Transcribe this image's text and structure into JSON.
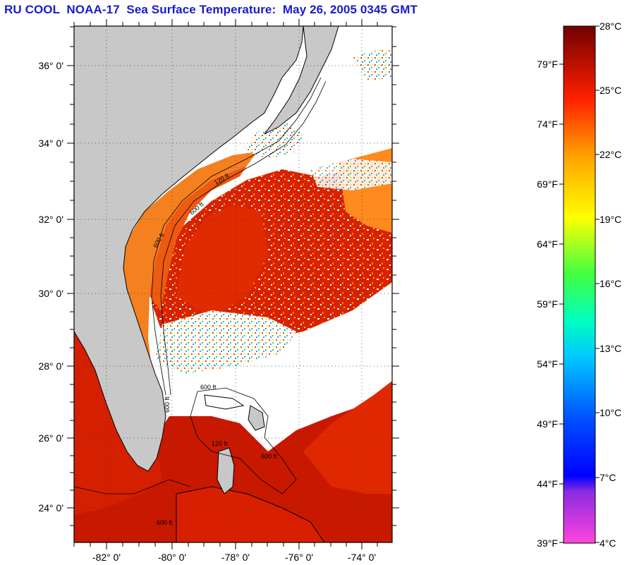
{
  "title": "RU COOL  NOAA-17  Sea Surface Temperature:  May 26, 2005 0345 GMT",
  "map": {
    "lat_labels": [
      "36° 0'",
      "34° 0'",
      "32° 0'",
      "30° 0'",
      "28° 0'",
      "26° 0'",
      "24° 0'"
    ],
    "lon_labels": [
      "-82° 0'",
      "-80° 0'",
      "-78° 0'",
      "-76° 0'",
      "-74° 0'"
    ],
    "isobath_labels": [
      "600 ft",
      "120 ft",
      "600 ft",
      "120 ft",
      "600 ft",
      "600 ft",
      "600 ft",
      "120 ft",
      "600 ft"
    ]
  },
  "colorbar": {
    "celsius": [
      "28°C",
      "25°C",
      "22°C",
      "19°C",
      "16°C",
      "13°C",
      "10°C",
      "7°C",
      "4°C"
    ],
    "fahrenheit": [
      "79°F",
      "74°F",
      "69°F",
      "64°F",
      "59°F",
      "54°F",
      "49°F",
      "44°F",
      "39°F"
    ],
    "stops": [
      "#7a0000",
      "#ff0000",
      "#ff8a00",
      "#ffff00",
      "#00ff80",
      "#00ffff",
      "#0060ff",
      "#0000ff",
      "#ff55dd"
    ]
  },
  "colors": {
    "land": "#c8c8c8",
    "cloud": "#ffffff",
    "warm_water": "#cc1a00",
    "gulf_stream": "#e83000",
    "shelf_water": "#f57e10",
    "title": "#1a1acc"
  }
}
